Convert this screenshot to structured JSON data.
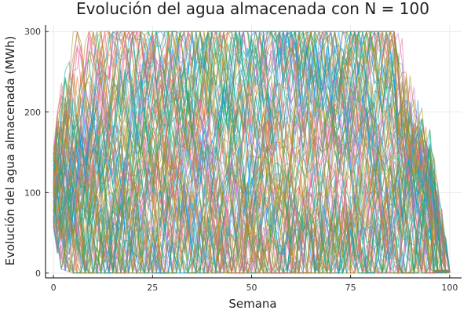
{
  "chart_data": {
    "type": "line",
    "title": "Evolución del agua almacenada con N = 100",
    "xlabel": "Semana",
    "ylabel": "Evolución del agua almacenada (MWh)",
    "xlim": [
      0,
      100
    ],
    "ylim": [
      0,
      300
    ],
    "xticks": [
      0,
      25,
      50,
      75,
      100
    ],
    "yticks": [
      0,
      100,
      200,
      300
    ],
    "xtick_labels": [
      "0",
      "25",
      "50",
      "75",
      "100"
    ],
    "ytick_labels": [
      "0",
      "100",
      "200",
      "300"
    ],
    "grid": true,
    "legend": "none",
    "simulations": 100,
    "palette": [
      "#009AFA",
      "#E36F47",
      "#3EA44E",
      "#C371D2",
      "#AC8E18",
      "#00AAAE",
      "#ED5E93",
      "#C68225",
      "#00A98D",
      "#8E971E"
    ],
    "series_envelope": {
      "x": [
        0,
        2,
        5,
        8,
        50,
        85,
        88,
        91,
        95,
        98,
        100
      ],
      "y_max": [
        160,
        240,
        300,
        300,
        300,
        300,
        300,
        250,
        180,
        80,
        20
      ],
      "y_min": [
        45,
        5,
        0,
        0,
        0,
        0,
        0,
        0,
        0,
        0,
        0
      ]
    }
  }
}
